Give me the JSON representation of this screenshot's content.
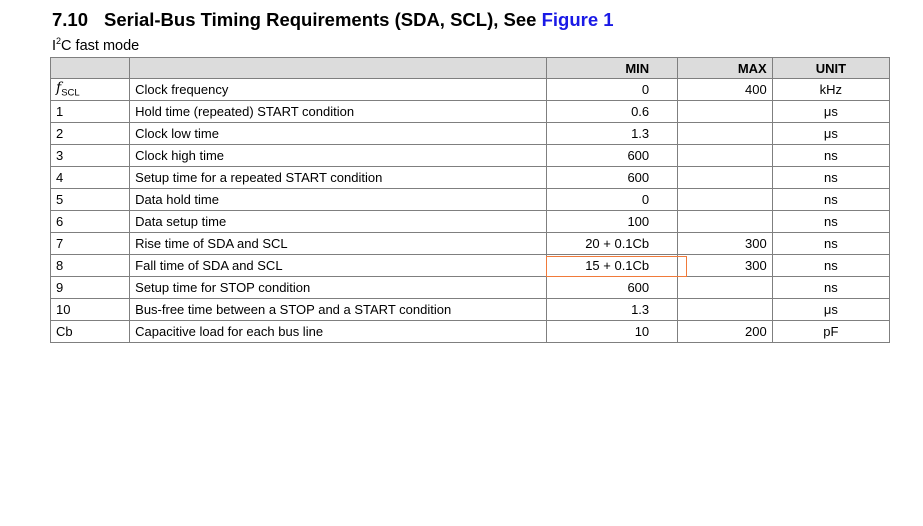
{
  "heading": {
    "number": "7.10",
    "text": "Serial-Bus Timing Requirements (SDA, SCL), See ",
    "link": "Figure 1"
  },
  "subtitle": {
    "prefix": "I",
    "sup": "2",
    "suffix": "C fast mode"
  },
  "table": {
    "headers": [
      "",
      "",
      "MIN",
      "MAX",
      "UNIT"
    ],
    "rows": [
      {
        "id": "f",
        "id_sub": "SCL",
        "param": "Clock frequency",
        "min": "0",
        "max": "400",
        "unit": "kHz"
      },
      {
        "id": "1",
        "param": "Hold time (repeated) START condition",
        "min": "0.6",
        "max": "",
        "unit": "μs"
      },
      {
        "id": "2",
        "param": "Clock low time",
        "min": "1.3",
        "max": "",
        "unit": "μs"
      },
      {
        "id": "3",
        "param": "Clock high time",
        "min": "600",
        "max": "",
        "unit": "ns"
      },
      {
        "id": "4",
        "param": "Setup time for a repeated START condition",
        "min": "600",
        "max": "",
        "unit": "ns"
      },
      {
        "id": "5",
        "param": "Data hold time",
        "min": "0",
        "max": "",
        "unit": "ns"
      },
      {
        "id": "6",
        "param": "Data setup time",
        "min": "100",
        "max": "",
        "unit": "ns"
      },
      {
        "id": "7",
        "param": "Rise time of SDA and SCL",
        "min": "20 + 0.1Cb",
        "max": "300",
        "unit": "ns"
      },
      {
        "id": "8",
        "param": "Fall time of SDA and SCL",
        "min": "15 + 0.1Cb",
        "max": "300",
        "unit": "ns"
      },
      {
        "id": "9",
        "param": "Setup time for STOP condition",
        "min": "600",
        "max": "",
        "unit": "ns"
      },
      {
        "id": "10",
        "param": "Bus-free time between a STOP and a START condition",
        "min": "1.3",
        "max": "",
        "unit": "μs"
      },
      {
        "id": "Cb",
        "param": "Capacitive load for each bus line",
        "min": "10",
        "max": "200",
        "unit": "pF"
      }
    ]
  },
  "colors": {
    "link": "#1a1ae6",
    "header_bg": "#dcdcdc",
    "highlight": "#f07a3a"
  }
}
